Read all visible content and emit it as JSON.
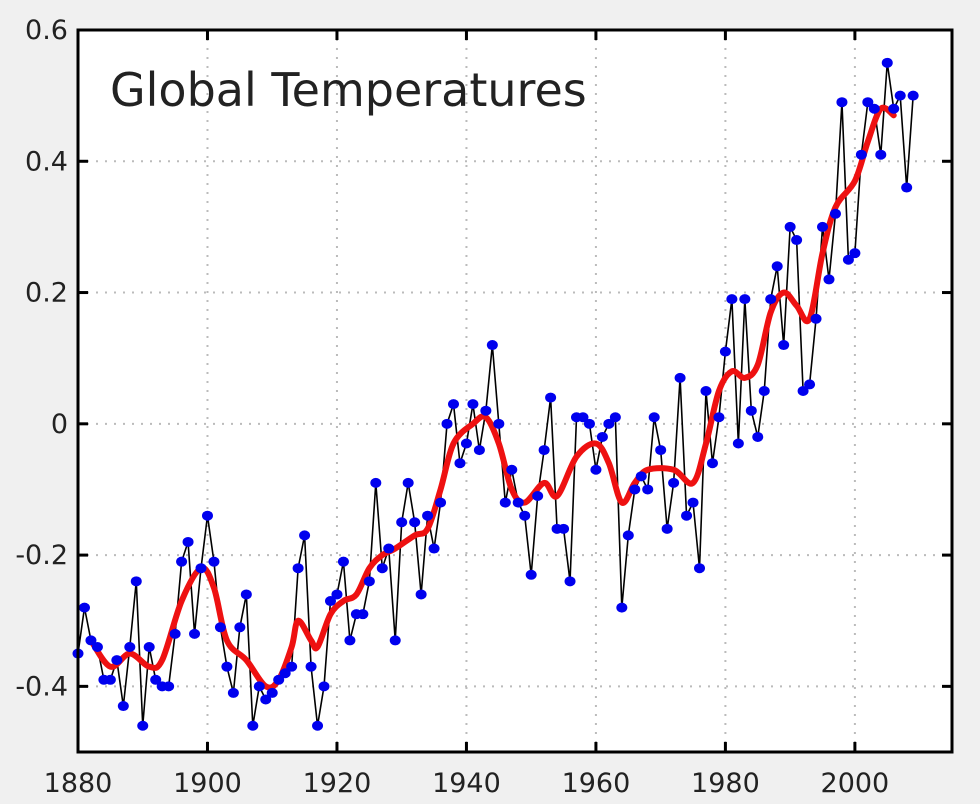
{
  "chart_data": {
    "type": "line",
    "title": "Global Temperatures",
    "xlabel": "",
    "ylabel": "",
    "xlim": [
      1880,
      2015
    ],
    "ylim": [
      -0.5,
      0.6
    ],
    "grid": true,
    "x_ticks": [
      1880,
      1900,
      1920,
      1940,
      1960,
      1980,
      2000
    ],
    "y_ticks": [
      -0.4,
      -0.2,
      0,
      0.2,
      0.4,
      0.6
    ],
    "x_tick_labels": [
      "1880",
      "1900",
      "1920",
      "1940",
      "1960",
      "1980",
      "2000"
    ],
    "y_tick_labels": [
      "-0.4",
      "-0.2",
      "0",
      "0.2",
      "0.4",
      "0.6"
    ],
    "colors": {
      "annual_points": "#0000ee",
      "annual_line": "#000000",
      "smoothed": "#ee1111"
    },
    "series": [
      {
        "style": "points-with-line",
        "x_start": 1880,
        "values": [
          -0.35,
          -0.28,
          -0.33,
          -0.34,
          -0.39,
          -0.39,
          -0.36,
          -0.43,
          -0.34,
          -0.24,
          -0.46,
          -0.34,
          -0.39,
          -0.4,
          -0.4,
          -0.32,
          -0.21,
          -0.18,
          -0.32,
          -0.22,
          -0.14,
          -0.21,
          -0.31,
          -0.37,
          -0.41,
          -0.31,
          -0.26,
          -0.46,
          -0.4,
          -0.42,
          -0.41,
          -0.39,
          -0.38,
          -0.37,
          -0.22,
          -0.17,
          -0.37,
          -0.46,
          -0.4,
          -0.27,
          -0.26,
          -0.21,
          -0.33,
          -0.29,
          -0.29,
          -0.24,
          -0.09,
          -0.22,
          -0.19,
          -0.33,
          -0.15,
          -0.09,
          -0.15,
          -0.26,
          -0.14,
          -0.19,
          -0.12,
          0.0,
          0.03,
          -0.06,
          -0.03,
          0.03,
          -0.04,
          0.02,
          0.12,
          0.0,
          -0.12,
          -0.07,
          -0.12,
          -0.14,
          -0.23,
          -0.11,
          -0.04,
          0.04,
          -0.16,
          -0.16,
          -0.24,
          0.01,
          0.01,
          0.0,
          -0.07,
          -0.02,
          0.0,
          0.01,
          -0.28,
          -0.17,
          -0.1,
          -0.08,
          -0.1,
          0.01,
          -0.04,
          -0.16,
          -0.09,
          0.07,
          -0.14,
          -0.12,
          -0.22,
          0.05,
          -0.06,
          0.01,
          0.11,
          0.19,
          -0.03,
          0.19,
          0.02,
          -0.02,
          0.05,
          0.19,
          0.24,
          0.12,
          0.3,
          0.28,
          0.05,
          0.06,
          0.16,
          0.3,
          0.22,
          0.32,
          0.49,
          0.25,
          0.26,
          0.41,
          0.49,
          0.48,
          0.41,
          0.55,
          0.48,
          0.5,
          0.36,
          0.5
        ]
      },
      {
        "style": "smoothed-line",
        "x": [
          1882,
          1885,
          1888,
          1891,
          1893,
          1896,
          1899,
          1901,
          1903,
          1906,
          1909,
          1911,
          1913,
          1914,
          1916,
          1917,
          1919,
          1921,
          1923,
          1925,
          1927,
          1929,
          1932,
          1934,
          1936,
          1938,
          1941,
          1943,
          1945,
          1947,
          1949,
          1952,
          1954,
          1957,
          1960,
          1962,
          1964,
          1966,
          1968,
          1972,
          1975,
          1977,
          1979,
          1981,
          1983,
          1985,
          1987,
          1989,
          1991,
          1993,
          1995,
          1997,
          2000,
          2002,
          2004,
          2006
        ],
        "values": [
          -0.33,
          -0.37,
          -0.35,
          -0.37,
          -0.36,
          -0.27,
          -0.22,
          -0.25,
          -0.33,
          -0.36,
          -0.4,
          -0.39,
          -0.34,
          -0.3,
          -0.33,
          -0.34,
          -0.29,
          -0.27,
          -0.26,
          -0.22,
          -0.2,
          -0.19,
          -0.17,
          -0.16,
          -0.1,
          -0.03,
          0.0,
          0.01,
          -0.03,
          -0.1,
          -0.12,
          -0.09,
          -0.11,
          -0.05,
          -0.03,
          -0.06,
          -0.12,
          -0.09,
          -0.07,
          -0.07,
          -0.09,
          -0.03,
          0.05,
          0.08,
          0.07,
          0.09,
          0.17,
          0.2,
          0.18,
          0.16,
          0.26,
          0.33,
          0.37,
          0.43,
          0.48,
          0.47
        ]
      }
    ]
  }
}
